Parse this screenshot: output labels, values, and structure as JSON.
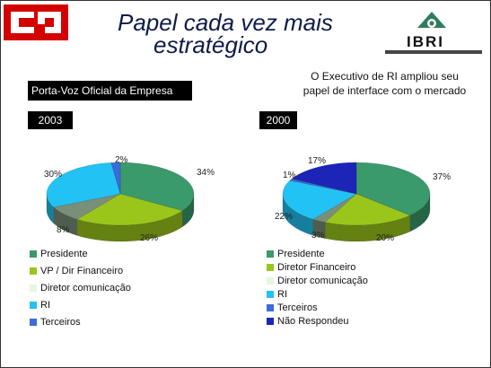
{
  "slide": {
    "title_line1": "Papel cada vez mais",
    "title_line2": "estratégico",
    "brand_right": "IBRI",
    "spokesperson_label": "Porta-Voz Oficial da Empresa",
    "callout": "O Executivo de RI ampliou seu papel de interface com o mercado",
    "colors": {
      "presidente": "#3a9a6b",
      "financeiro": "#9ac61c",
      "comunicacao": "#e6f7e0",
      "ri": "#22c3f4",
      "terceiros": "#3a6bd8",
      "nao_respondeu": "#1c25b8",
      "unlabeled": "#7a8f7a"
    }
  },
  "chart_data": [
    {
      "type": "pie",
      "title": "2003",
      "slices": [
        {
          "label": "Presidente",
          "value": 34,
          "color_key": "presidente",
          "value_label": "34%"
        },
        {
          "label": "VP / Dir Financeiro",
          "value": 26,
          "color_key": "financeiro",
          "value_label": "26%"
        },
        {
          "label": "",
          "value": 8,
          "color_key": "unlabeled",
          "value_label": "8%"
        },
        {
          "label": "Diretor comunicação",
          "value": 0,
          "color_key": "comunicacao",
          "value_label": ""
        },
        {
          "label": "RI",
          "value": 30,
          "color_key": "ri",
          "value_label": "30%"
        },
        {
          "label": "Terceiros",
          "value": 2,
          "color_key": "terceiros",
          "value_label": "2%"
        }
      ],
      "legend": [
        "Presidente",
        "VP / Dir Financeiro",
        "Diretor comunicação",
        "RI",
        "Terceiros"
      ],
      "legend_keys": [
        "presidente",
        "financeiro",
        "comunicacao",
        "ri",
        "terceiros"
      ]
    },
    {
      "type": "pie",
      "title": "2000",
      "slices": [
        {
          "label": "Presidente",
          "value": 37,
          "color_key": "presidente",
          "value_label": "37%"
        },
        {
          "label": "Diretor Financeiro",
          "value": 20,
          "color_key": "financeiro",
          "value_label": "20%"
        },
        {
          "label": "",
          "value": 3,
          "color_key": "unlabeled",
          "value_label": "3%"
        },
        {
          "label": "Diretor comunicação",
          "value": 0,
          "color_key": "comunicacao",
          "value_label": ""
        },
        {
          "label": "RI",
          "value": 22,
          "color_key": "ri",
          "value_label": "22%"
        },
        {
          "label": "Terceiros",
          "value": 1,
          "color_key": "terceiros",
          "value_label": "1%"
        },
        {
          "label": "Não Respondeu",
          "value": 17,
          "color_key": "nao_respondeu",
          "value_label": "17%"
        }
      ],
      "legend": [
        "Presidente",
        "Diretor Financeiro",
        "Diretor comunicação",
        "RI",
        "Terceiros",
        "Não Respondeu"
      ],
      "legend_keys": [
        "presidente",
        "financeiro",
        "comunicacao",
        "ri",
        "terceiros",
        "nao_respondeu"
      ]
    }
  ]
}
